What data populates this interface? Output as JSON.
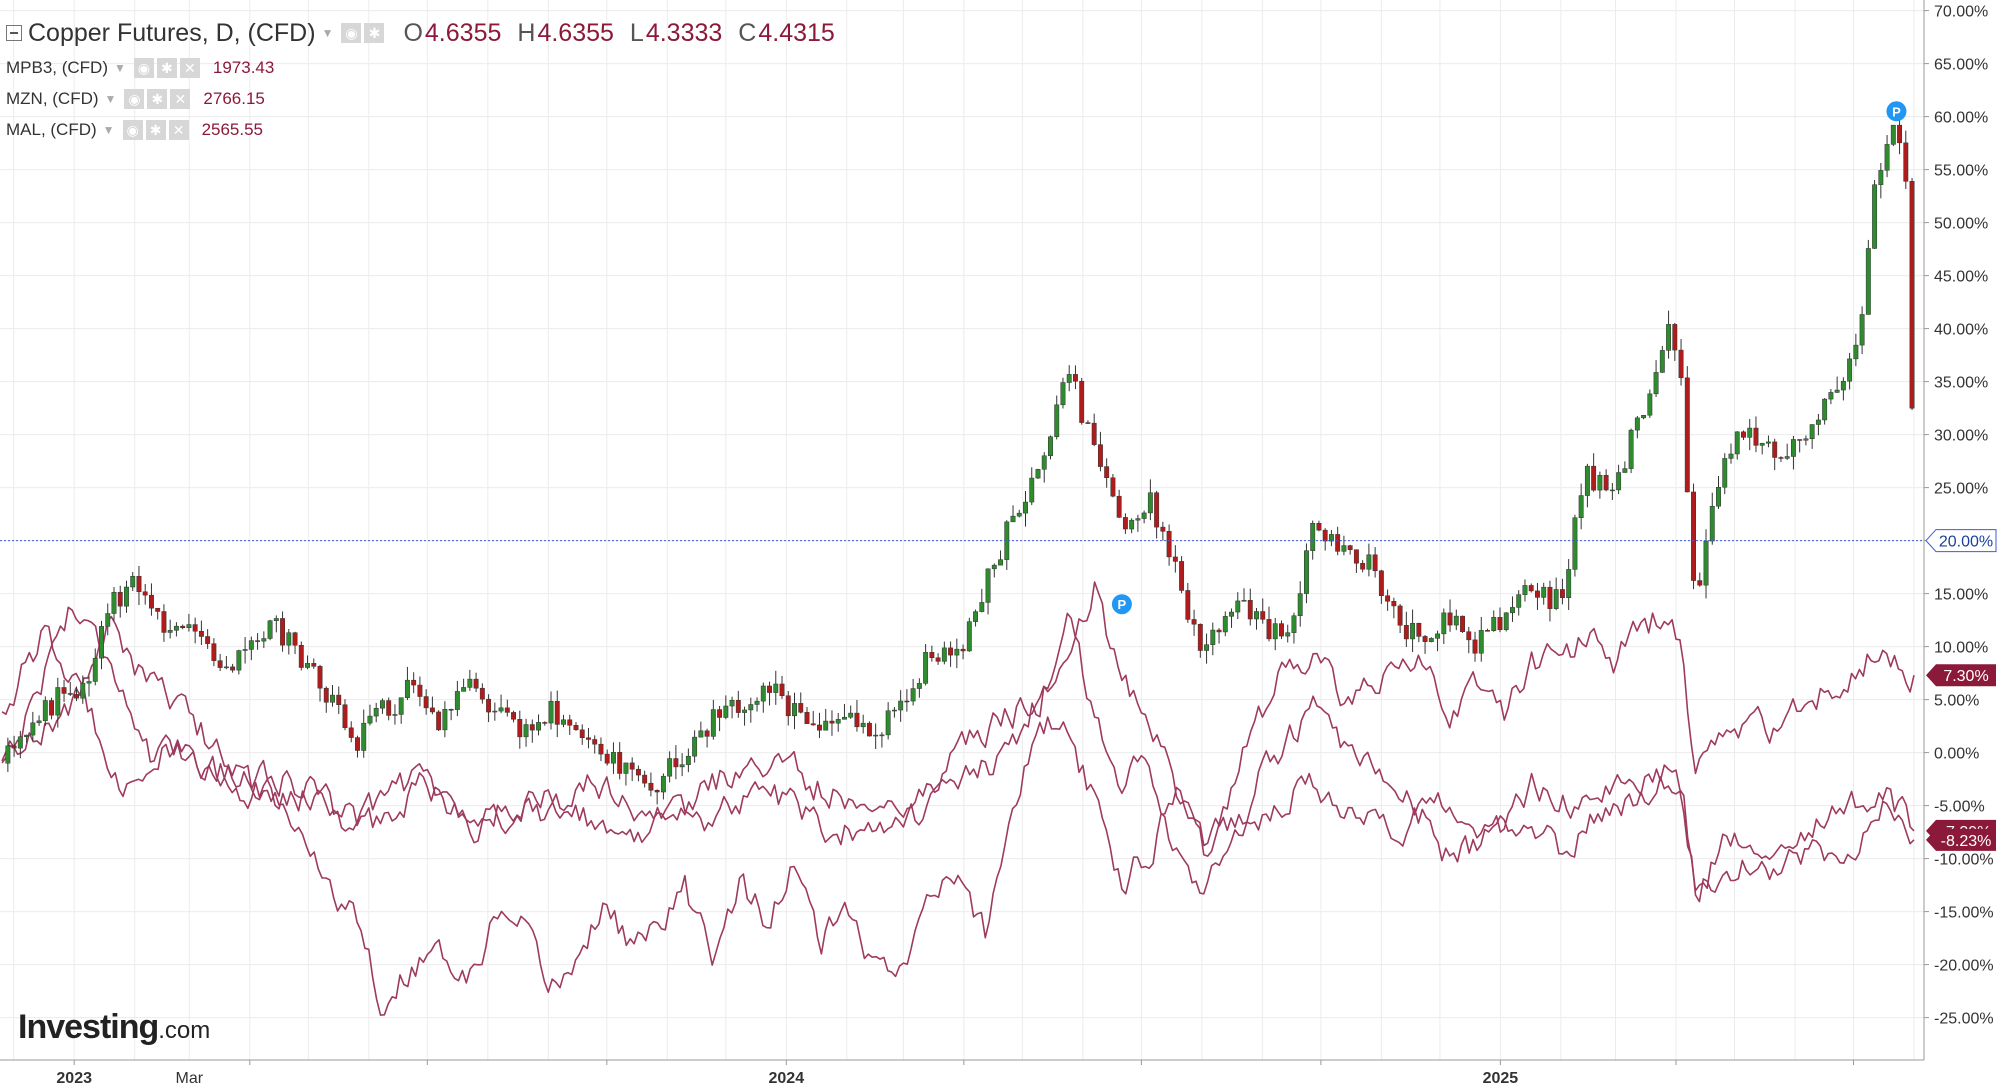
{
  "legend": {
    "main": {
      "title": "Copper Futures, D, (CFD)",
      "o_label": "O",
      "o": "4.6355",
      "h_label": "H",
      "h": "4.6355",
      "l_label": "L",
      "l": "4.3333",
      "c_label": "C",
      "c": "4.4315"
    },
    "series": [
      {
        "name": "MPB3, (CFD)",
        "value": "1973.43"
      },
      {
        "name": "MZN, (CFD)",
        "value": "2766.15"
      },
      {
        "name": "MAL, (CFD)",
        "value": "2565.55"
      }
    ]
  },
  "brand": {
    "name": "Investing",
    "suffix": ".com"
  },
  "colors": {
    "up": "#2e8b2e",
    "down": "#b01c1c",
    "compare": "#9e3a5f",
    "badge": "#8b1a3a",
    "marker": "#2196f3",
    "current_line": "#3b5bdb"
  },
  "chart_data": {
    "type": "line",
    "y_axis": {
      "unit": "%",
      "ylim": [
        -29,
        71
      ],
      "tick_labels": [
        "70.00%",
        "65.00%",
        "60.00%",
        "55.00%",
        "50.00%",
        "45.00%",
        "40.00%",
        "35.00%",
        "30.00%",
        "25.00%",
        "20.00%",
        "15.00%",
        "10.00%",
        "5.00%",
        "0.00%",
        "-5.00%",
        "-10.00%",
        "-15.00%",
        "-20.00%",
        "-25.00%"
      ]
    },
    "x_axis": {
      "tick_labels": [
        "2023",
        "Mar",
        "2024",
        "2025"
      ],
      "bold_labels": [
        "2023",
        "2024",
        "2025"
      ],
      "range": [
        "2022-11-25",
        "2025-08-01"
      ]
    },
    "current_value": {
      "label": "20.00%",
      "value": 20
    },
    "badges": [
      {
        "label": "7.30%",
        "value": 7.3
      },
      {
        "label": "-7.39%",
        "value": -7.39
      },
      {
        "label": "-8.23%",
        "value": -8.23
      }
    ],
    "markers": [
      {
        "label": "P",
        "date": "2024-06-21",
        "value": 14
      },
      {
        "label": "P",
        "date": "2025-07-23",
        "value": 60.5
      }
    ],
    "series": [
      {
        "name": "Copper Futures, D, (CFD)",
        "style": "candlestick",
        "points": [
          [
            "2022-11-25",
            -1
          ],
          [
            "2022-12-09",
            3
          ],
          [
            "2022-12-23",
            5
          ],
          [
            "2023-01-06",
            6
          ],
          [
            "2023-01-20",
            14
          ],
          [
            "2023-02-03",
            16
          ],
          [
            "2023-02-17",
            11
          ],
          [
            "2023-03-03",
            13
          ],
          [
            "2023-03-17",
            8
          ],
          [
            "2023-03-31",
            10
          ],
          [
            "2023-04-14",
            12
          ],
          [
            "2023-04-28",
            9
          ],
          [
            "2023-05-12",
            5
          ],
          [
            "2023-05-26",
            1
          ],
          [
            "2023-06-09",
            4
          ],
          [
            "2023-06-23",
            6
          ],
          [
            "2023-07-07",
            3
          ],
          [
            "2023-07-21",
            7
          ],
          [
            "2023-08-04",
            4
          ],
          [
            "2023-08-18",
            2
          ],
          [
            "2023-09-01",
            4
          ],
          [
            "2023-09-15",
            3
          ],
          [
            "2023-09-29",
            0
          ],
          [
            "2023-10-13",
            -2
          ],
          [
            "2023-10-27",
            -3
          ],
          [
            "2023-11-10",
            0
          ],
          [
            "2023-11-24",
            3
          ],
          [
            "2023-12-08",
            5
          ],
          [
            "2023-12-22",
            6
          ],
          [
            "2024-01-05",
            4
          ],
          [
            "2024-01-19",
            2
          ],
          [
            "2024-02-02",
            4
          ],
          [
            "2024-02-16",
            2
          ],
          [
            "2024-03-01",
            4
          ],
          [
            "2024-03-15",
            10
          ],
          [
            "2024-03-29",
            9
          ],
          [
            "2024-04-12",
            16
          ],
          [
            "2024-04-26",
            22
          ],
          [
            "2024-05-10",
            26
          ],
          [
            "2024-05-24",
            36
          ],
          [
            "2024-06-07",
            29
          ],
          [
            "2024-06-21",
            22
          ],
          [
            "2024-07-05",
            24
          ],
          [
            "2024-07-19",
            17
          ],
          [
            "2024-08-02",
            9
          ],
          [
            "2024-08-16",
            14
          ],
          [
            "2024-08-30",
            13
          ],
          [
            "2024-09-13",
            10
          ],
          [
            "2024-09-27",
            21
          ],
          [
            "2024-10-11",
            19
          ],
          [
            "2024-10-25",
            18
          ],
          [
            "2024-11-08",
            13
          ],
          [
            "2024-11-22",
            10
          ],
          [
            "2024-12-06",
            13
          ],
          [
            "2024-12-20",
            10
          ],
          [
            "2025-01-03",
            13
          ],
          [
            "2025-01-17",
            16
          ],
          [
            "2025-01-31",
            14
          ],
          [
            "2025-02-14",
            26
          ],
          [
            "2025-02-28",
            25
          ],
          [
            "2025-03-14",
            32
          ],
          [
            "2025-03-28",
            40
          ],
          [
            "2025-04-04",
            34
          ],
          [
            "2025-04-11",
            13
          ],
          [
            "2025-04-25",
            28
          ],
          [
            "2025-05-09",
            31
          ],
          [
            "2025-05-23",
            27
          ],
          [
            "2025-06-06",
            30
          ],
          [
            "2025-06-20",
            33
          ],
          [
            "2025-07-04",
            38
          ],
          [
            "2025-07-11",
            53
          ],
          [
            "2025-07-23",
            59
          ],
          [
            "2025-07-29",
            54
          ],
          [
            "2025-08-01",
            20
          ]
        ]
      },
      {
        "name": "MPB3, (CFD)",
        "style": "line",
        "points": [
          [
            "2022-11-25",
            4
          ],
          [
            "2022-12-16",
            11
          ],
          [
            "2023-01-06",
            5
          ],
          [
            "2023-01-27",
            -3
          ],
          [
            "2023-02-17",
            0
          ],
          [
            "2023-03-10",
            -1
          ],
          [
            "2023-03-31",
            -3
          ],
          [
            "2023-04-21",
            -6
          ],
          [
            "2023-05-12",
            -12
          ],
          [
            "2023-05-26",
            -16
          ],
          [
            "2023-06-09",
            -24
          ],
          [
            "2023-06-23",
            -20
          ],
          [
            "2023-07-07",
            -18
          ],
          [
            "2023-07-21",
            -22
          ],
          [
            "2023-08-04",
            -16
          ],
          [
            "2023-08-18",
            -17
          ],
          [
            "2023-09-01",
            -22
          ],
          [
            "2023-09-15",
            -20
          ],
          [
            "2023-09-29",
            -14
          ],
          [
            "2023-10-13",
            -18
          ],
          [
            "2023-10-27",
            -17
          ],
          [
            "2023-11-10",
            -13
          ],
          [
            "2023-11-24",
            -19
          ],
          [
            "2023-12-08",
            -12
          ],
          [
            "2023-12-22",
            -16
          ],
          [
            "2024-01-05",
            -11
          ],
          [
            "2024-01-19",
            -18
          ],
          [
            "2024-02-02",
            -15
          ],
          [
            "2024-02-16",
            -21
          ],
          [
            "2024-03-01",
            -19
          ],
          [
            "2024-03-15",
            -14
          ],
          [
            "2024-03-29",
            -12
          ],
          [
            "2024-04-12",
            -17
          ],
          [
            "2024-04-26",
            -5
          ],
          [
            "2024-05-10",
            3
          ],
          [
            "2024-05-24",
            2
          ],
          [
            "2024-06-07",
            -5
          ],
          [
            "2024-06-21",
            -12
          ],
          [
            "2024-07-05",
            -9
          ],
          [
            "2024-07-19",
            -3
          ],
          [
            "2024-08-02",
            -8
          ],
          [
            "2024-08-16",
            -6
          ],
          [
            "2024-08-30",
            -6
          ],
          [
            "2024-09-13",
            -4
          ],
          [
            "2024-09-27",
            -3
          ],
          [
            "2024-10-11",
            -6
          ],
          [
            "2024-10-25",
            -5
          ],
          [
            "2024-11-08",
            -8
          ],
          [
            "2024-11-22",
            -6
          ],
          [
            "2024-12-06",
            -10
          ],
          [
            "2024-12-20",
            -9
          ],
          [
            "2025-01-03",
            -7
          ],
          [
            "2025-01-17",
            -8
          ],
          [
            "2025-01-31",
            -9
          ],
          [
            "2025-02-14",
            -7
          ],
          [
            "2025-02-28",
            -5
          ],
          [
            "2025-03-14",
            -4
          ],
          [
            "2025-03-28",
            -2
          ],
          [
            "2025-04-04",
            -3
          ],
          [
            "2025-04-11",
            -13
          ],
          [
            "2025-04-25",
            -11
          ],
          [
            "2025-05-09",
            -10
          ],
          [
            "2025-05-23",
            -11
          ],
          [
            "2025-06-06",
            -9
          ],
          [
            "2025-06-20",
            -10
          ],
          [
            "2025-07-04",
            -8
          ],
          [
            "2025-07-18",
            -5
          ],
          [
            "2025-08-01",
            -8.23
          ]
        ]
      },
      {
        "name": "MZN, (CFD)",
        "style": "line",
        "points": [
          [
            "2022-11-25",
            -1
          ],
          [
            "2022-12-09",
            4
          ],
          [
            "2022-12-30",
            14
          ],
          [
            "2023-01-20",
            9
          ],
          [
            "2023-02-10",
            -1
          ],
          [
            "2023-03-03",
            0
          ],
          [
            "2023-03-24",
            -3
          ],
          [
            "2023-04-14",
            -4
          ],
          [
            "2023-05-05",
            -4
          ],
          [
            "2023-05-26",
            -6
          ],
          [
            "2023-06-09",
            -7
          ],
          [
            "2023-06-30",
            -2
          ],
          [
            "2023-07-21",
            -7
          ],
          [
            "2023-08-11",
            -6
          ],
          [
            "2023-09-01",
            -4
          ],
          [
            "2023-09-22",
            -6
          ],
          [
            "2023-10-13",
            -9
          ],
          [
            "2023-11-03",
            -4
          ],
          [
            "2023-11-24",
            -7
          ],
          [
            "2023-12-15",
            -3
          ],
          [
            "2024-01-05",
            -5
          ],
          [
            "2024-01-26",
            -8
          ],
          [
            "2024-02-16",
            -6
          ],
          [
            "2024-03-08",
            -6
          ],
          [
            "2024-03-29",
            -3
          ],
          [
            "2024-04-19",
            -1
          ],
          [
            "2024-05-10",
            5
          ],
          [
            "2024-05-24",
            12
          ],
          [
            "2024-06-07",
            4
          ],
          [
            "2024-06-21",
            -3
          ],
          [
            "2024-07-05",
            0
          ],
          [
            "2024-07-19",
            -9
          ],
          [
            "2024-08-02",
            -13
          ],
          [
            "2024-08-16",
            -9
          ],
          [
            "2024-08-30",
            -3
          ],
          [
            "2024-09-13",
            1
          ],
          [
            "2024-09-27",
            4
          ],
          [
            "2024-10-11",
            0
          ],
          [
            "2024-10-25",
            -2
          ],
          [
            "2024-11-08",
            -4
          ],
          [
            "2024-11-22",
            -6
          ],
          [
            "2024-12-06",
            -4
          ],
          [
            "2024-12-20",
            -7
          ],
          [
            "2025-01-03",
            -8
          ],
          [
            "2025-01-17",
            -3
          ],
          [
            "2025-01-31",
            -4
          ],
          [
            "2025-02-14",
            -5
          ],
          [
            "2025-02-28",
            -4
          ],
          [
            "2025-03-14",
            -3
          ],
          [
            "2025-03-28",
            -1
          ],
          [
            "2025-04-04",
            -3
          ],
          [
            "2025-04-11",
            -13
          ],
          [
            "2025-04-25",
            -9
          ],
          [
            "2025-05-09",
            -8
          ],
          [
            "2025-05-23",
            -8
          ],
          [
            "2025-06-06",
            -7
          ],
          [
            "2025-06-20",
            -6
          ],
          [
            "2025-07-04",
            -5
          ],
          [
            "2025-07-18",
            -4
          ],
          [
            "2025-08-01",
            -7.39
          ]
        ]
      },
      {
        "name": "MAL, (CFD)",
        "style": "line",
        "points": [
          [
            "2022-11-25",
            -1
          ],
          [
            "2022-12-09",
            2
          ],
          [
            "2022-12-30",
            4
          ],
          [
            "2023-01-20",
            12
          ],
          [
            "2023-02-10",
            6
          ],
          [
            "2023-03-03",
            3
          ],
          [
            "2023-03-24",
            -2
          ],
          [
            "2023-04-14",
            -2
          ],
          [
            "2023-05-05",
            -4
          ],
          [
            "2023-05-26",
            -7
          ],
          [
            "2023-06-09",
            -4
          ],
          [
            "2023-06-30",
            -2
          ],
          [
            "2023-07-21",
            -7
          ],
          [
            "2023-08-11",
            -5
          ],
          [
            "2023-09-01",
            -6
          ],
          [
            "2023-09-22",
            -3
          ],
          [
            "2023-10-13",
            -4
          ],
          [
            "2023-11-03",
            -8
          ],
          [
            "2023-11-24",
            -3
          ],
          [
            "2023-12-15",
            -1
          ],
          [
            "2024-01-05",
            -2
          ],
          [
            "2024-01-26",
            -4
          ],
          [
            "2024-02-16",
            -5
          ],
          [
            "2024-03-08",
            -4
          ],
          [
            "2024-03-29",
            0
          ],
          [
            "2024-04-19",
            3
          ],
          [
            "2024-05-10",
            5
          ],
          [
            "2024-05-24",
            9
          ],
          [
            "2024-06-07",
            16
          ],
          [
            "2024-06-21",
            6
          ],
          [
            "2024-07-05",
            4
          ],
          [
            "2024-07-19",
            -3
          ],
          [
            "2024-08-02",
            -9
          ],
          [
            "2024-08-16",
            -3
          ],
          [
            "2024-08-30",
            3
          ],
          [
            "2024-09-13",
            8
          ],
          [
            "2024-09-27",
            10
          ],
          [
            "2024-10-11",
            5
          ],
          [
            "2024-10-25",
            6
          ],
          [
            "2024-11-08",
            7
          ],
          [
            "2024-11-22",
            9
          ],
          [
            "2024-12-06",
            4
          ],
          [
            "2024-12-20",
            6
          ],
          [
            "2025-01-03",
            4
          ],
          [
            "2025-01-17",
            8
          ],
          [
            "2025-01-31",
            9
          ],
          [
            "2025-02-14",
            11
          ],
          [
            "2025-02-28",
            9
          ],
          [
            "2025-03-14",
            12
          ],
          [
            "2025-03-28",
            13
          ],
          [
            "2025-04-04",
            10
          ],
          [
            "2025-04-11",
            -2
          ],
          [
            "2025-04-25",
            1
          ],
          [
            "2025-05-09",
            3
          ],
          [
            "2025-05-23",
            2
          ],
          [
            "2025-06-06",
            5
          ],
          [
            "2025-06-20",
            6
          ],
          [
            "2025-07-04",
            8
          ],
          [
            "2025-07-18",
            10
          ],
          [
            "2025-08-01",
            7.3
          ]
        ]
      }
    ]
  }
}
